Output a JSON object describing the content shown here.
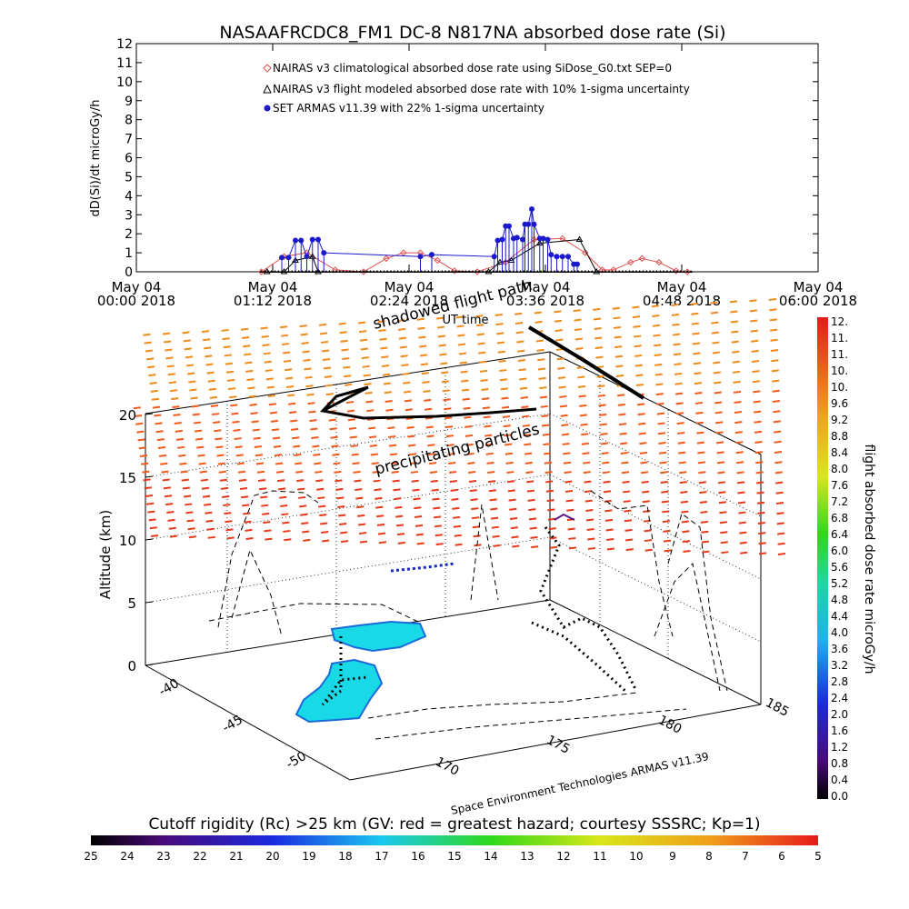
{
  "chart_data": [
    {
      "type": "line",
      "title": "NASAAFRCDC8_FM1 DC-8   N817NA absorbed dose rate (Si)",
      "ylabel": "dD(Si)/dt microGy/h",
      "xlabel": "UT time",
      "ylim": [
        0,
        12
      ],
      "yticks": [
        "0",
        "1",
        "2",
        "3",
        "4",
        "5",
        "6",
        "7",
        "8",
        "9",
        "10",
        "11",
        "12"
      ],
      "xticks": [
        {
          "date": "May 04",
          "time": "00:00 2018"
        },
        {
          "date": "May 04",
          "time": "01:12 2018"
        },
        {
          "date": "May 04",
          "time": "02:24 2018"
        },
        {
          "date": "May 04",
          "time": "03:36 2018"
        },
        {
          "date": "May 04",
          "time": "04:48 2018"
        },
        {
          "date": "May 04",
          "time": "06:00 2018"
        }
      ],
      "legend_placement": "top-left",
      "series": [
        {
          "name": "NAIRAS v3 climatological absorbed dose rate using SiDose_G0.txt SEP=0",
          "color": "#e05050",
          "marker": "diamond",
          "x": [
            1.1,
            1.3,
            1.5,
            1.75,
            2.0,
            2.2,
            2.35,
            2.5,
            2.65,
            2.8,
            3.0,
            3.25,
            3.5,
            3.75,
            3.95,
            4.1,
            4.2,
            4.35,
            4.45,
            4.6,
            4.75,
            4.85
          ],
          "values": [
            0,
            0.8,
            1.0,
            0.1,
            0,
            0.7,
            1.0,
            1.0,
            0.6,
            0.05,
            0,
            0.5,
            1.7,
            1.75,
            1.0,
            0.1,
            0.1,
            0.5,
            0.7,
            0.5,
            0.05,
            0
          ]
        },
        {
          "name": "NAIRAS v3 flight modeled absorbed dose rate with 10% 1-sigma uncertainty",
          "color": "#000000",
          "marker": "triangle",
          "x": [
            1.15,
            1.3,
            1.4,
            1.55,
            1.6,
            3.1,
            3.2,
            3.3,
            3.55,
            3.9,
            4.05
          ],
          "values": [
            0,
            0,
            0.6,
            0.8,
            0,
            0,
            0.5,
            0.6,
            1.5,
            1.7,
            0
          ]
        },
        {
          "name": "SET ARMAS v11.39 with 22% 1-sigma uncertainty",
          "color": "#1a1acc",
          "marker": "circle",
          "x": [
            1.28,
            1.34,
            1.4,
            1.45,
            1.5,
            1.55,
            1.6,
            1.65,
            2.5,
            2.6,
            3.15,
            3.18,
            3.22,
            3.25,
            3.28,
            3.32,
            3.35,
            3.4,
            3.42,
            3.45,
            3.48,
            3.5,
            3.55,
            3.58,
            3.62,
            3.65,
            3.7,
            3.75,
            3.8,
            3.85,
            3.88
          ],
          "values": [
            0.75,
            0.75,
            1.65,
            1.65,
            0.8,
            1.7,
            1.7,
            1.0,
            0.8,
            0.9,
            0.8,
            1.65,
            1.7,
            2.4,
            2.4,
            1.75,
            1.8,
            1.7,
            2.5,
            2.5,
            3.3,
            2.5,
            1.75,
            1.75,
            1.7,
            0.9,
            0.8,
            0.8,
            0.8,
            0.4,
            0.4
          ]
        }
      ]
    },
    {
      "type": "scatter",
      "title": "",
      "annotations": [
        "shadowed flight path",
        "precipitating particles"
      ],
      "zlabel": "Altitude (km)",
      "zticks": [
        "0",
        "5",
        "10",
        "15",
        "20"
      ],
      "xticks": [
        "170",
        "175",
        "180",
        "185"
      ],
      "yticks": [
        "-40",
        "-45",
        "-50"
      ],
      "credit": "Space Environment Technologies ARMAS v11.39"
    },
    {
      "type": "heatmap",
      "label": "flight absorbed dose rate microGy/h",
      "ticks": [
        "12.",
        "11.",
        "11.",
        "10.",
        "10.",
        "9.6",
        "9.2",
        "8.8",
        "8.4",
        "8.0",
        "7.6",
        "7.2",
        "6.8",
        "6.4",
        "6.0",
        "5.6",
        "5.2",
        "4.8",
        "4.4",
        "4.0",
        "3.6",
        "3.2",
        "2.8",
        "2.4",
        "2.0",
        "1.6",
        "1.2",
        "0.8",
        "0.4",
        "0.0"
      ],
      "range": [
        0,
        12
      ]
    },
    {
      "type": "heatmap",
      "label": "Cutoff rigidity (Rc) >25 km (GV: red = greatest hazard; courtesy SSSRC; Kp=1)",
      "ticks": [
        "25",
        "24",
        "23",
        "22",
        "21",
        "20",
        "19",
        "18",
        "17",
        "16",
        "15",
        "14",
        "13",
        "12",
        "11",
        "10",
        "9",
        "8",
        "7",
        "6",
        "5"
      ],
      "range": [
        25,
        5
      ]
    }
  ]
}
